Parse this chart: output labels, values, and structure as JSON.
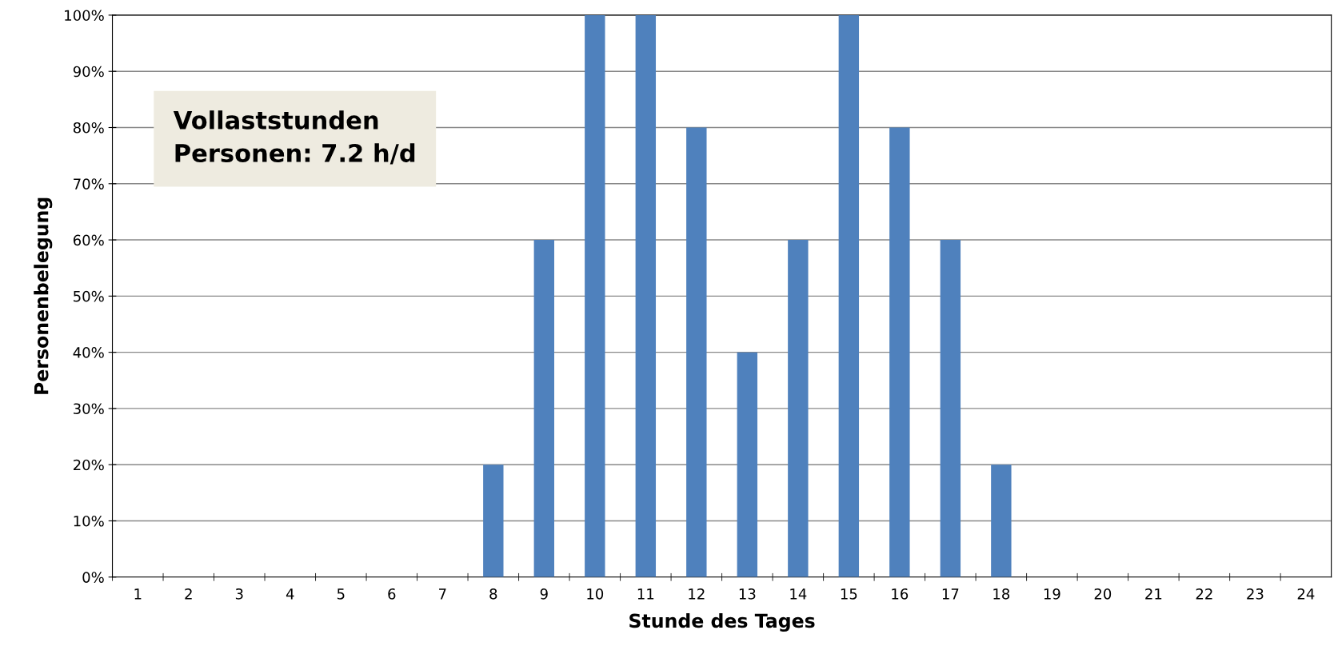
{
  "chart_data": {
    "type": "bar",
    "xlabel": "Stunde des Tages",
    "ylabel": "Personenbelegung",
    "categories": [
      "1",
      "2",
      "3",
      "4",
      "5",
      "6",
      "7",
      "8",
      "9",
      "10",
      "11",
      "12",
      "13",
      "14",
      "15",
      "16",
      "17",
      "18",
      "19",
      "20",
      "21",
      "22",
      "23",
      "24"
    ],
    "values": [
      0,
      0,
      0,
      0,
      0,
      0,
      0,
      20,
      60,
      100,
      100,
      80,
      40,
      60,
      100,
      80,
      60,
      20,
      0,
      0,
      0,
      0,
      0,
      0
    ],
    "color": "#4f81bd",
    "ylim": [
      0,
      100
    ],
    "yticks": [
      {
        "value": 0,
        "label": "0%"
      },
      {
        "value": 10,
        "label": "10%"
      },
      {
        "value": 20,
        "label": "20%"
      },
      {
        "value": 30,
        "label": "30%"
      },
      {
        "value": 40,
        "label": "40%"
      },
      {
        "value": 50,
        "label": "50%"
      },
      {
        "value": 60,
        "label": "60%"
      },
      {
        "value": 70,
        "label": "70%"
      },
      {
        "value": 80,
        "label": "80%"
      },
      {
        "value": 90,
        "label": "90%"
      },
      {
        "value": 100,
        "label": "100%"
      }
    ],
    "grid": "y",
    "annotations": [
      "Vollaststunden\nPersonen: 7.2 h/d"
    ]
  }
}
